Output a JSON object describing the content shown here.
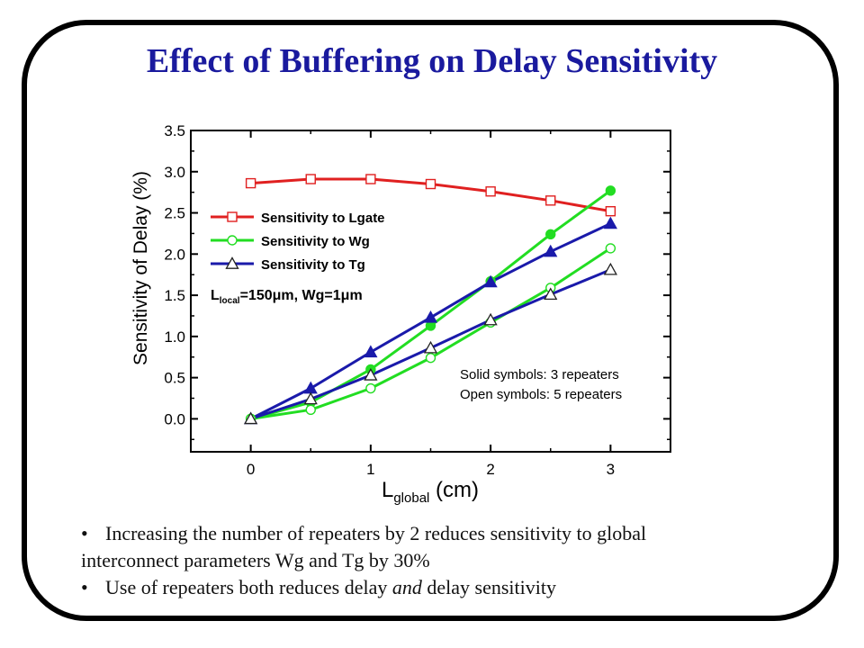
{
  "slide": {
    "title": "Effect of Buffering on Delay Sensitivity",
    "bullets": [
      {
        "line1": "Increasing the number of repeaters by 2 reduces sensitivity to global",
        "line2": "interconnect parameters Wg and Tg by 30%"
      },
      {
        "pre": "Use of repeaters both reduces delay ",
        "emph": "and",
        "post": " delay sensitivity"
      }
    ],
    "bullet_char": "•"
  },
  "chart_data": {
    "type": "line",
    "title": "",
    "xlabel": {
      "main": "L",
      "sub": "global",
      "unit": " (cm)"
    },
    "ylabel": "Sensitivity of Delay (%)",
    "xlim": [
      -0.5,
      3.5
    ],
    "ylim": [
      -0.4,
      3.5
    ],
    "xticks": [
      0,
      1,
      2,
      3
    ],
    "yticks": [
      0.0,
      0.5,
      1.0,
      1.5,
      2.0,
      2.5,
      3.0,
      3.5
    ],
    "ytick_labels": [
      "0.0",
      "0.5",
      "1.0",
      "1.5",
      "2.0",
      "2.5",
      "3.0",
      "3.5"
    ],
    "grid": false,
    "legend_position": "upper-left",
    "legend": [
      {
        "label": "Sensitivity to Lgate",
        "color": "#e02020",
        "marker": "square"
      },
      {
        "label": "Sensitivity to Wg",
        "color": "#22dd22",
        "marker": "circle"
      },
      {
        "label": "Sensitivity to Tg",
        "color": "#1a1aaa",
        "marker": "triangle"
      }
    ],
    "annotation_param": {
      "prefix": "L",
      "sub": "local",
      "text": "=150",
      "mu": "μ",
      "text2": "m, Wg=1",
      "mu2": "μ",
      "text3": "m"
    },
    "annotations": [
      "Solid symbols: 3 repeaters",
      "Open symbols: 5 repeaters"
    ],
    "series": [
      {
        "name": "Sensitivity to Lgate",
        "color": "#e02020",
        "marker": "square",
        "filled": false,
        "x": [
          0,
          0.5,
          1,
          1.5,
          2,
          2.5,
          3
        ],
        "y": [
          2.86,
          2.91,
          2.91,
          2.85,
          2.76,
          2.65,
          2.52
        ]
      },
      {
        "name": "Sensitivity to Wg",
        "color": "#22dd22",
        "marker": "circle",
        "filled": true,
        "x": [
          0,
          0.5,
          1,
          1.5,
          2,
          2.5,
          3
        ],
        "y": [
          0.0,
          0.2,
          0.6,
          1.13,
          1.67,
          2.24,
          2.77
        ]
      },
      {
        "name": "Sensitivity to Tg",
        "color": "#1a1aaa",
        "marker": "triangle",
        "filled": true,
        "x": [
          0,
          0.5,
          1,
          1.5,
          2,
          2.5,
          3
        ],
        "y": [
          0.0,
          0.37,
          0.81,
          1.23,
          1.66,
          2.03,
          2.37
        ]
      },
      {
        "name": "Sensitivity to Wg",
        "color": "#22dd22",
        "marker": "circle",
        "filled": false,
        "x": [
          0,
          0.5,
          1,
          1.5,
          2,
          2.5,
          3
        ],
        "y": [
          0.0,
          0.11,
          0.37,
          0.74,
          1.17,
          1.59,
          2.07
        ]
      },
      {
        "name": "Sensitivity to Tg",
        "color": "#1a1aaa",
        "marker": "triangle",
        "filled": false,
        "x": [
          0,
          0.5,
          1,
          1.5,
          2,
          2.5,
          3
        ],
        "y": [
          0.0,
          0.24,
          0.53,
          0.86,
          1.2,
          1.51,
          1.81
        ]
      }
    ]
  }
}
